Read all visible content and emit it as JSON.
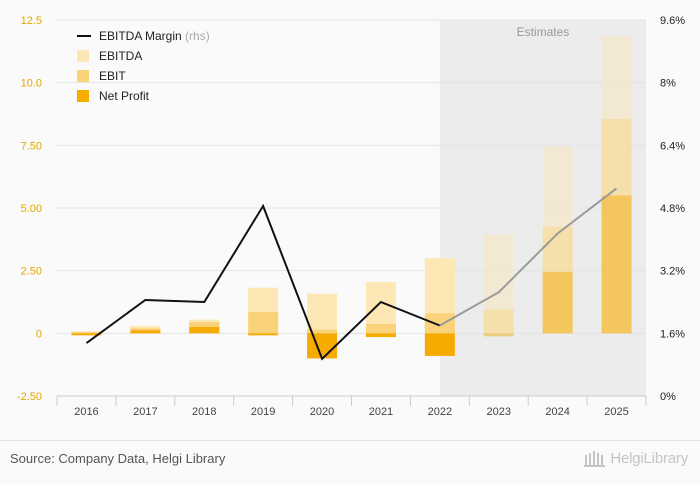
{
  "chart_data": {
    "type": "bar",
    "categories": [
      "2016",
      "2017",
      "2018",
      "2019",
      "2020",
      "2021",
      "2022",
      "2023",
      "2024",
      "2025"
    ],
    "estimates_from": "2023",
    "estimates_label": "Estimates",
    "left_ylim": [
      -2.5,
      12.5
    ],
    "left_ticks": [
      "12.5",
      "10.0",
      "7.50",
      "5.00",
      "2.50",
      "0",
      "-2.50"
    ],
    "right_ylim": [
      0,
      9.6
    ],
    "right_ticks": [
      "9.6%",
      "8%",
      "6.4%",
      "4.8%",
      "3.2%",
      "1.6%",
      "0%"
    ],
    "series": [
      {
        "name": "EBITDA",
        "kind": "bar",
        "color": "#fde7b5",
        "values": [
          0.08,
          0.3,
          0.55,
          1.82,
          1.58,
          2.05,
          3.0,
          3.95,
          7.45,
          11.85
        ]
      },
      {
        "name": "EBIT",
        "kind": "bar",
        "color": "#f9d27a",
        "values": [
          0.05,
          0.2,
          0.45,
          0.85,
          0.15,
          0.38,
          0.8,
          0.95,
          4.25,
          8.55
        ]
      },
      {
        "name": "Net Profit",
        "kind": "bar",
        "color": "#f5ab00",
        "values": [
          -0.08,
          0.12,
          0.25,
          -0.08,
          -1.0,
          -0.15,
          -0.9,
          -0.12,
          2.45,
          5.5
        ]
      },
      {
        "name": "EBITDA Margin",
        "name_suffix": "(rhs)",
        "kind": "line",
        "axis": "right",
        "color": "#111111",
        "estimate_color": "#9a9a9a",
        "values": [
          1.35,
          2.45,
          2.4,
          4.85,
          0.95,
          2.4,
          1.8,
          2.65,
          4.15,
          5.3
        ]
      }
    ]
  },
  "footer": {
    "source": "Source: Company Data, Helgi Library",
    "brand": "HelgiLibrary"
  }
}
